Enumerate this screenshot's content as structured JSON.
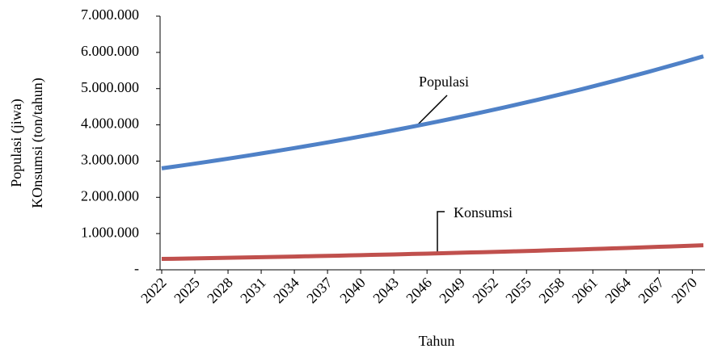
{
  "chart_data": {
    "type": "line",
    "xlabel": "Tahun",
    "ylabel": [
      "Populasi (jiwa)",
      "KOnsumsi (ton/tahun)"
    ],
    "x": [
      2022,
      2023,
      2024,
      2025,
      2026,
      2027,
      2028,
      2029,
      2030,
      2031,
      2032,
      2033,
      2034,
      2035,
      2036,
      2037,
      2038,
      2039,
      2040,
      2041,
      2042,
      2043,
      2044,
      2045,
      2046,
      2047,
      2048,
      2049,
      2050,
      2051,
      2052,
      2053,
      2054,
      2055,
      2056,
      2057,
      2058,
      2059,
      2060,
      2061,
      2062,
      2063,
      2064,
      2065,
      2066,
      2067,
      2068,
      2069,
      2070,
      2071
    ],
    "xlim": [
      2022,
      2071
    ],
    "xticks": [
      2022,
      2025,
      2028,
      2031,
      2034,
      2037,
      2040,
      2043,
      2046,
      2049,
      2052,
      2055,
      2058,
      2061,
      2064,
      2067,
      2070
    ],
    "ylim": [
      0,
      7000000
    ],
    "yticks": [
      {
        "value": 0,
        "label": "-"
      },
      {
        "value": 1000000,
        "label": "1.000.000"
      },
      {
        "value": 2000000,
        "label": "2.000.000"
      },
      {
        "value": 3000000,
        "label": "3.000.000"
      },
      {
        "value": 4000000,
        "label": "4.000.000"
      },
      {
        "value": 5000000,
        "label": "5.000.000"
      },
      {
        "value": 6000000,
        "label": "6.000.000"
      },
      {
        "value": 7000000,
        "label": "7.000.000"
      }
    ],
    "grid": false,
    "series": [
      {
        "name": "Populasi",
        "color": "#4f81c7",
        "values": [
          2800000,
          2843000,
          2886000,
          2930000,
          2975000,
          3021000,
          3067000,
          3114000,
          3161000,
          3210000,
          3259000,
          3309000,
          3359000,
          3411000,
          3463000,
          3516000,
          3570000,
          3624000,
          3680000,
          3736000,
          3793000,
          3851000,
          3910000,
          3970000,
          4031000,
          4093000,
          4155000,
          4219000,
          4283000,
          4349000,
          4415000,
          4483000,
          4551000,
          4621000,
          4692000,
          4763000,
          4836000,
          4910000,
          4985000,
          5062000,
          5139000,
          5218000,
          5298000,
          5379000,
          5461000,
          5545000,
          5630000,
          5716000,
          5803000,
          5892000
        ]
      },
      {
        "name": "Konsumsi",
        "color": "#c0504d",
        "values": [
          300000,
          305000,
          310000,
          315000,
          321000,
          326000,
          332000,
          337000,
          343000,
          348000,
          354000,
          360000,
          366000,
          372000,
          378000,
          385000,
          391000,
          398000,
          404000,
          411000,
          418000,
          425000,
          432000,
          440000,
          447000,
          455000,
          462000,
          470000,
          478000,
          486000,
          494000,
          502000,
          511000,
          519000,
          528000,
          537000,
          546000,
          555000,
          564000,
          574000,
          583000,
          593000,
          603000,
          613000,
          624000,
          634000,
          645000,
          656000,
          667000,
          678000
        ]
      }
    ]
  }
}
